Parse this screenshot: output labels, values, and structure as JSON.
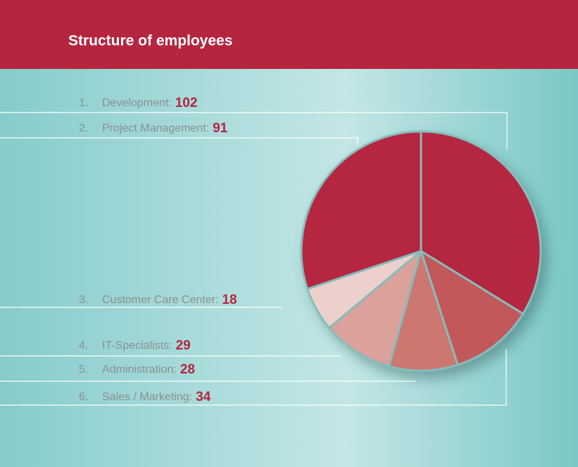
{
  "chart_data": {
    "type": "pie",
    "title": "Structure of employees",
    "index_labels": [
      "1.",
      "2.",
      "3.",
      "4.",
      "5.",
      "6."
    ],
    "categories": [
      "Development:",
      "Project Management:",
      "Customer Care Center:",
      "IT-Specialists:",
      "Administration:",
      "Sales / Marketing:"
    ],
    "values": [
      102,
      91,
      18,
      29,
      28,
      34
    ],
    "colors": [
      "#b5253f",
      "#b5253f",
      "#ecd0cb",
      "#dba19b",
      "#cd7771",
      "#c3585a"
    ]
  }
}
